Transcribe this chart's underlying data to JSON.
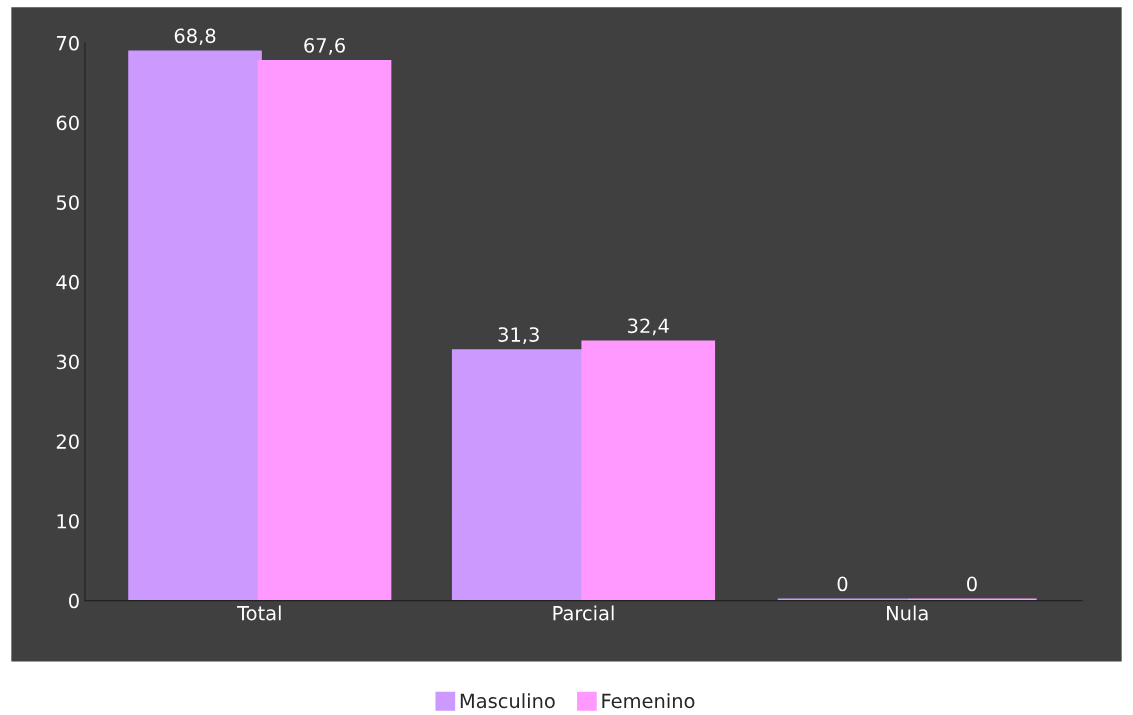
{
  "chart_data": {
    "type": "bar",
    "categories": [
      "Total",
      "Parcial",
      "Nula"
    ],
    "series": [
      {
        "name": "Masculino",
        "color": "#cc99ff",
        "values": [
          68.8,
          31.3,
          0
        ],
        "value_labels": [
          "68,8",
          "31,3",
          "0"
        ]
      },
      {
        "name": "Femenino",
        "color": "#ff99ff",
        "values": [
          67.6,
          32.4,
          0
        ],
        "value_labels": [
          "67,6",
          "32,4",
          "0"
        ]
      }
    ],
    "ylim": [
      0,
      70
    ],
    "yticks": [
      0,
      10,
      20,
      30,
      40,
      50,
      60,
      70
    ],
    "grid": false,
    "legend": "bottom"
  }
}
